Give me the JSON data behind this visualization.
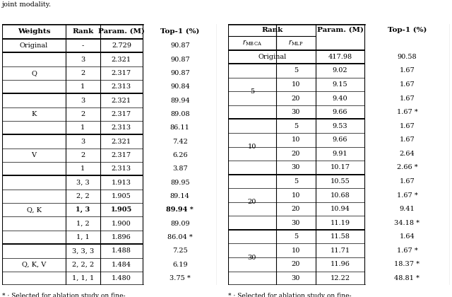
{
  "left_table": {
    "header": [
      "Weights",
      "Rank",
      "Param. (M)",
      "Top-1 (%)"
    ],
    "rows": [
      {
        "weights": "Original",
        "rank": "-",
        "param": "2.729",
        "top1": "90.87",
        "bold": false
      },
      {
        "weights": "Q",
        "rank": "3",
        "param": "2.321",
        "top1": "90.87",
        "bold": false
      },
      {
        "weights": "",
        "rank": "2",
        "param": "2.317",
        "top1": "90.87",
        "bold": false
      },
      {
        "weights": "",
        "rank": "1",
        "param": "2.313",
        "top1": "90.84",
        "bold": false
      },
      {
        "weights": "K",
        "rank": "3",
        "param": "2.321",
        "top1": "89.94",
        "bold": false
      },
      {
        "weights": "",
        "rank": "2",
        "param": "2.317",
        "top1": "89.08",
        "bold": false
      },
      {
        "weights": "",
        "rank": "1",
        "param": "2.313",
        "top1": "86.11",
        "bold": false
      },
      {
        "weights": "V",
        "rank": "3",
        "param": "2.321",
        "top1": "7.42",
        "bold": false
      },
      {
        "weights": "",
        "rank": "2",
        "param": "2.317",
        "top1": "6.26",
        "bold": false
      },
      {
        "weights": "",
        "rank": "1",
        "param": "2.313",
        "top1": "3.87",
        "bold": false
      },
      {
        "weights": "Q, K",
        "rank": "3, 3",
        "param": "1.913",
        "top1": "89.95",
        "bold": false
      },
      {
        "weights": "",
        "rank": "2, 2",
        "param": "1.905",
        "top1": "89.14",
        "bold": false
      },
      {
        "weights": "",
        "rank": "1, 3",
        "param": "1.905",
        "top1": "89.94 *",
        "bold": true
      },
      {
        "weights": "",
        "rank": "1, 2",
        "param": "1.900",
        "top1": "89.09",
        "bold": false
      },
      {
        "weights": "",
        "rank": "1, 1",
        "param": "1.896",
        "top1": "86.04 *",
        "bold": false
      },
      {
        "weights": "Q, K, V",
        "rank": "3, 3, 3",
        "param": "1.488",
        "top1": "7.25",
        "bold": false
      },
      {
        "weights": "",
        "rank": "2, 2, 2",
        "param": "1.484",
        "top1": "6.19",
        "bold": false
      },
      {
        "weights": "",
        "rank": "1, 1, 1",
        "param": "1.480",
        "top1": "3.75 *",
        "bold": false
      }
    ],
    "group_rows": [
      {
        "label": "Original",
        "start": 0,
        "end": 0
      },
      {
        "label": "Q",
        "start": 1,
        "end": 3
      },
      {
        "label": "K",
        "start": 4,
        "end": 6
      },
      {
        "label": "V",
        "start": 7,
        "end": 9
      },
      {
        "label": "Q, K",
        "start": 10,
        "end": 14
      },
      {
        "label": "Q, K, V",
        "start": 15,
        "end": 17
      }
    ],
    "thick_seps": [
      0,
      1,
      4,
      7,
      10,
      15,
      18
    ],
    "footnote": "* : Selected for ablation study on fine-\ntuning."
  },
  "right_table": {
    "rows": [
      {
        "r_mbca": "Original",
        "r_mlp": "",
        "param": "417.98",
        "top1": "90.58"
      },
      {
        "r_mbca": "5",
        "r_mlp": "5",
        "param": "9.02",
        "top1": "1.67"
      },
      {
        "r_mbca": "",
        "r_mlp": "10",
        "param": "9.15",
        "top1": "1.67"
      },
      {
        "r_mbca": "",
        "r_mlp": "20",
        "param": "9.40",
        "top1": "1.67"
      },
      {
        "r_mbca": "",
        "r_mlp": "30",
        "param": "9.66",
        "top1": "1.67 *"
      },
      {
        "r_mbca": "10",
        "r_mlp": "5",
        "param": "9.53",
        "top1": "1.67"
      },
      {
        "r_mbca": "",
        "r_mlp": "10",
        "param": "9.66",
        "top1": "1.67"
      },
      {
        "r_mbca": "",
        "r_mlp": "20",
        "param": "9.91",
        "top1": "2.64"
      },
      {
        "r_mbca": "",
        "r_mlp": "30",
        "param": "10.17",
        "top1": "2.66 *"
      },
      {
        "r_mbca": "20",
        "r_mlp": "5",
        "param": "10.55",
        "top1": "1.67"
      },
      {
        "r_mbca": "",
        "r_mlp": "10",
        "param": "10.68",
        "top1": "1.67 *"
      },
      {
        "r_mbca": "",
        "r_mlp": "20",
        "param": "10.94",
        "top1": "9.41"
      },
      {
        "r_mbca": "",
        "r_mlp": "30",
        "param": "11.19",
        "top1": "34.18 *"
      },
      {
        "r_mbca": "30",
        "r_mlp": "5",
        "param": "11.58",
        "top1": "1.64"
      },
      {
        "r_mbca": "",
        "r_mlp": "10",
        "param": "11.71",
        "top1": "1.67 *"
      },
      {
        "r_mbca": "",
        "r_mlp": "20",
        "param": "11.96",
        "top1": "18.37 *"
      },
      {
        "r_mbca": "",
        "r_mlp": "30",
        "param": "12.22",
        "top1": "48.81 *"
      }
    ],
    "groups": [
      {
        "label": "",
        "start": 0,
        "end": 0
      },
      {
        "label": "5",
        "start": 1,
        "end": 4
      },
      {
        "label": "10",
        "start": 5,
        "end": 8
      },
      {
        "label": "20",
        "start": 9,
        "end": 12
      },
      {
        "label": "30",
        "start": 13,
        "end": 16
      }
    ],
    "thick_seps": [
      0,
      1,
      5,
      9,
      13,
      17
    ],
    "footnote": "* : Selected for ablation study on fine-\ntuning."
  },
  "font_size": 7.0,
  "header_font_size": 7.5
}
